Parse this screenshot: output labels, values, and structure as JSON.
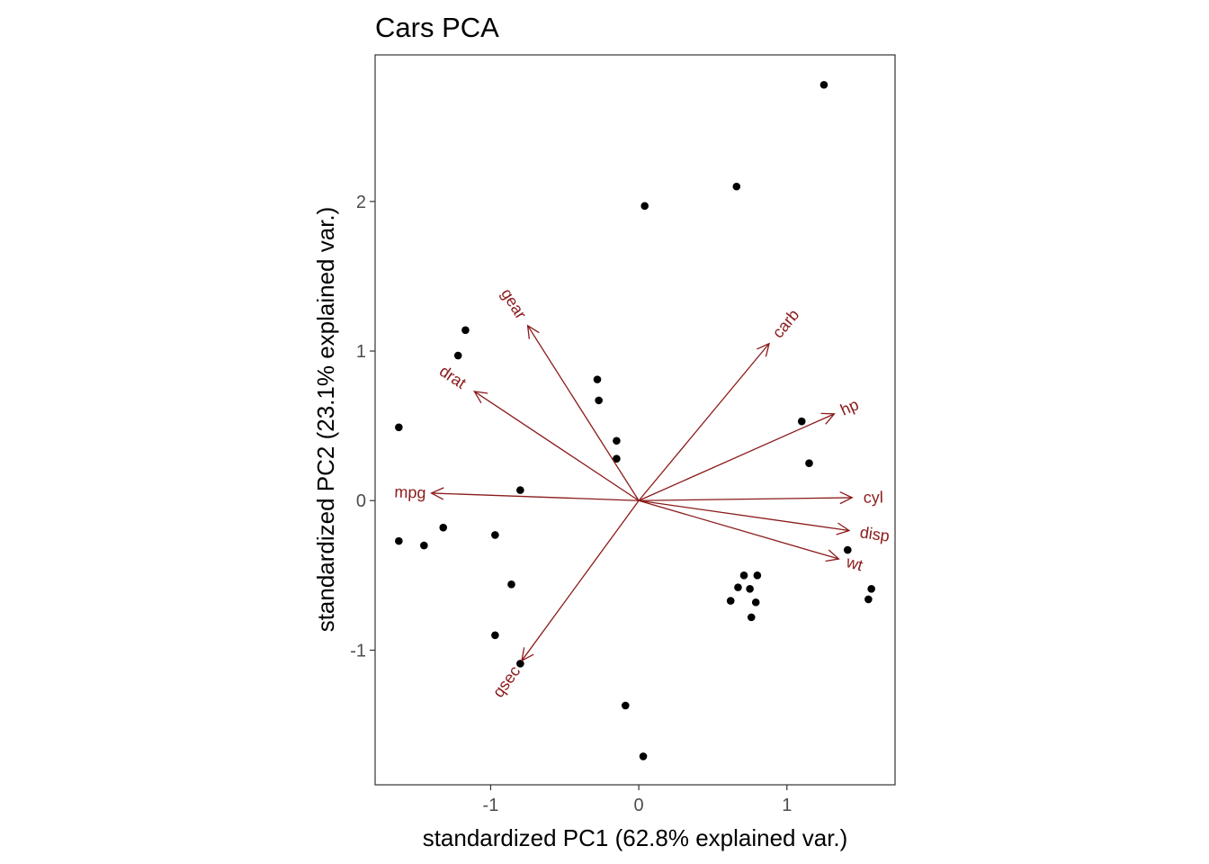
{
  "chart_data": {
    "type": "scatter",
    "title": "Cars PCA",
    "xlabel": "standardized PC1 (62.8% explained var.)",
    "ylabel": "standardized PC2 (23.1% explained var.)",
    "xlim": [
      -1.78,
      1.73
    ],
    "ylim": [
      -1.9,
      2.98
    ],
    "x_ticks": [
      -1,
      0,
      1
    ],
    "y_ticks": [
      -1,
      0,
      1,
      2
    ],
    "grid": false,
    "points": [
      [
        1.25,
        2.78
      ],
      [
        0.66,
        2.1
      ],
      [
        0.04,
        1.97
      ],
      [
        -1.17,
        1.14
      ],
      [
        -1.22,
        0.97
      ],
      [
        -0.28,
        0.81
      ],
      [
        -0.27,
        0.67
      ],
      [
        -0.15,
        0.4
      ],
      [
        -0.15,
        0.28
      ],
      [
        -1.62,
        0.49
      ],
      [
        -0.8,
        0.07
      ],
      [
        -1.62,
        -0.27
      ],
      [
        -1.45,
        -0.3
      ],
      [
        -1.32,
        -0.18
      ],
      [
        -0.97,
        -0.23
      ],
      [
        -0.86,
        -0.56
      ],
      [
        -0.97,
        -0.9
      ],
      [
        -0.8,
        -1.09
      ],
      [
        -0.09,
        -1.37
      ],
      [
        0.03,
        -1.71
      ],
      [
        1.1,
        0.53
      ],
      [
        1.15,
        0.25
      ],
      [
        1.41,
        -0.33
      ],
      [
        1.57,
        -0.59
      ],
      [
        1.55,
        -0.66
      ],
      [
        0.71,
        -0.5
      ],
      [
        0.8,
        -0.5
      ],
      [
        0.67,
        -0.58
      ],
      [
        0.75,
        -0.59
      ],
      [
        0.62,
        -0.67
      ],
      [
        0.79,
        -0.68
      ],
      [
        0.76,
        -0.78
      ]
    ],
    "point_color": "#000000",
    "loading_color": "#8b1a1a",
    "loadings": [
      {
        "name": "mpg",
        "x": -1.4,
        "y": 0.05
      },
      {
        "name": "cyl",
        "x": 1.44,
        "y": 0.02
      },
      {
        "name": "disp",
        "x": 1.42,
        "y": -0.2
      },
      {
        "name": "hp",
        "x": 1.32,
        "y": 0.58
      },
      {
        "name": "drat",
        "x": -1.11,
        "y": 0.73
      },
      {
        "name": "wt",
        "x": 1.35,
        "y": -0.39
      },
      {
        "name": "qsec",
        "x": -0.79,
        "y": -1.07
      },
      {
        "name": "gear",
        "x": -0.75,
        "y": 1.17
      },
      {
        "name": "carb",
        "x": 0.88,
        "y": 1.05
      }
    ]
  }
}
